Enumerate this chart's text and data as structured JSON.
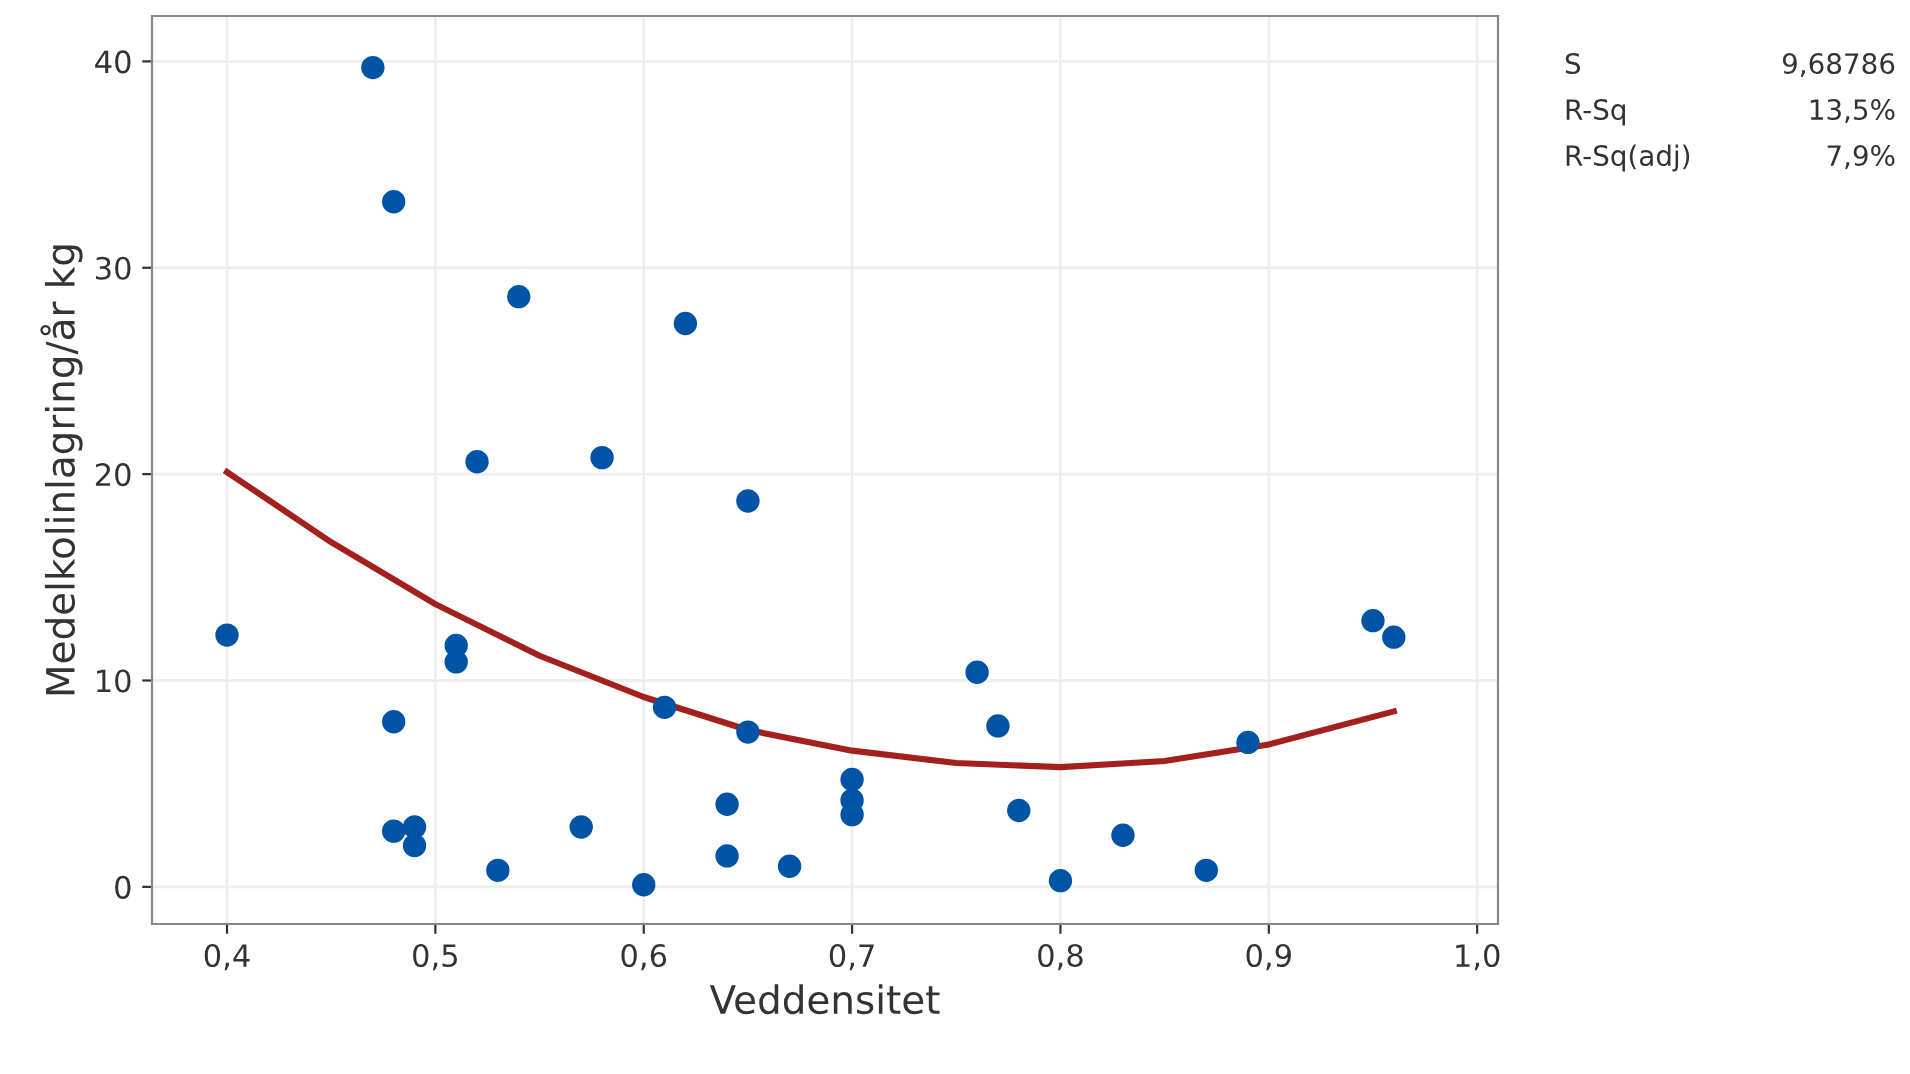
{
  "chart_data": {
    "type": "scatter",
    "xlabel": "Veddensitet",
    "ylabel": "Medelkolinlagring/år kg",
    "xlim": [
      0.364,
      1.01
    ],
    "ylim": [
      -1.8,
      42.2
    ],
    "xticks": [
      {
        "value": 0.4,
        "label": "0,4"
      },
      {
        "value": 0.5,
        "label": "0,5"
      },
      {
        "value": 0.6,
        "label": "0,6"
      },
      {
        "value": 0.7,
        "label": "0,7"
      },
      {
        "value": 0.8,
        "label": "0,8"
      },
      {
        "value": 0.9,
        "label": "0,9"
      },
      {
        "value": 1.0,
        "label": "1,0"
      }
    ],
    "yticks": [
      0,
      10,
      20,
      30,
      40
    ],
    "grid": true,
    "marker": "circle",
    "series": [
      {
        "color": "#0054a6",
        "x": [
          0.4,
          0.47,
          0.48,
          0.48,
          0.48,
          0.49,
          0.49,
          0.51,
          0.51,
          0.52,
          0.53,
          0.54,
          0.57,
          0.58,
          0.6,
          0.61,
          0.62,
          0.64,
          0.64,
          0.65,
          0.65,
          0.67,
          0.7,
          0.7,
          0.7,
          0.76,
          0.77,
          0.78,
          0.8,
          0.83,
          0.87,
          0.89,
          0.95,
          0.96
        ],
        "values": [
          12.2,
          39.7,
          33.2,
          8.0,
          2.7,
          2.9,
          2.0,
          11.7,
          10.9,
          20.6,
          0.8,
          28.6,
          2.9,
          20.8,
          0.1,
          8.7,
          27.3,
          4.0,
          1.5,
          18.7,
          7.5,
          1.0,
          5.2,
          4.2,
          3.5,
          10.4,
          7.8,
          3.7,
          0.3,
          2.5,
          0.8,
          7.0,
          12.9,
          12.1
        ]
      },
      {
        "type": "line",
        "color": "#a3201d",
        "marker": "none",
        "x": [
          0.4,
          0.45,
          0.5,
          0.55,
          0.6,
          0.65,
          0.7,
          0.75,
          0.8,
          0.85,
          0.9,
          0.96
        ],
        "values": [
          20.1,
          16.7,
          13.7,
          11.2,
          9.2,
          7.6,
          6.6,
          6.0,
          5.8,
          6.1,
          6.9,
          8.5
        ]
      }
    ],
    "annotations": [
      "S",
      "9,68786",
      "R-Sq",
      "13,5%",
      "R-Sq(adj)",
      "7,9%"
    ]
  }
}
